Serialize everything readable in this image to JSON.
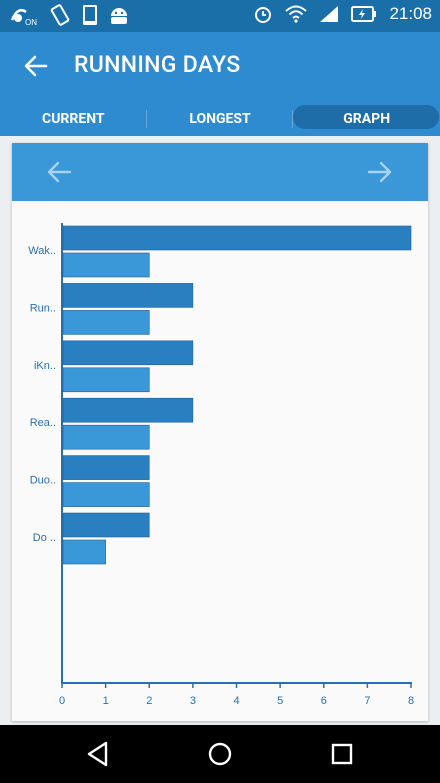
{
  "status": {
    "time": "21:08",
    "left_icons": [
      "notification-on-icon",
      "screen-rotation-icon",
      "phone-icon",
      "android-icon"
    ],
    "right_icons": [
      "alarm-icon",
      "wifi-icon",
      "signal-icon",
      "battery-charging-icon"
    ]
  },
  "toolbar": {
    "title": "RUNNING DAYS"
  },
  "tabs": [
    {
      "label": "CURRENT",
      "active": false
    },
    {
      "label": "LONGEST",
      "active": false
    },
    {
      "label": "GRAPH",
      "active": true
    }
  ],
  "colors": {
    "primary": "#2e8bd0",
    "dark_bar": "#2a7fc0",
    "light_bar": "#3a97d8",
    "axis": "#2a6fb0"
  },
  "chart_data": {
    "type": "bar",
    "orientation": "horizontal",
    "categories": [
      "Wak..",
      "Run..",
      "iKn..",
      "Rea..",
      "Duo..",
      "Do .."
    ],
    "series": [
      {
        "values": [
          8,
          3,
          3,
          3,
          2,
          2
        ]
      },
      {
        "values": [
          2,
          2,
          2,
          2,
          2,
          1
        ]
      }
    ],
    "xlim": [
      0,
      8
    ],
    "xticks": [
      "0",
      "1",
      "2",
      "3",
      "4",
      "5",
      "6",
      "7",
      "8"
    ],
    "grid": false
  }
}
